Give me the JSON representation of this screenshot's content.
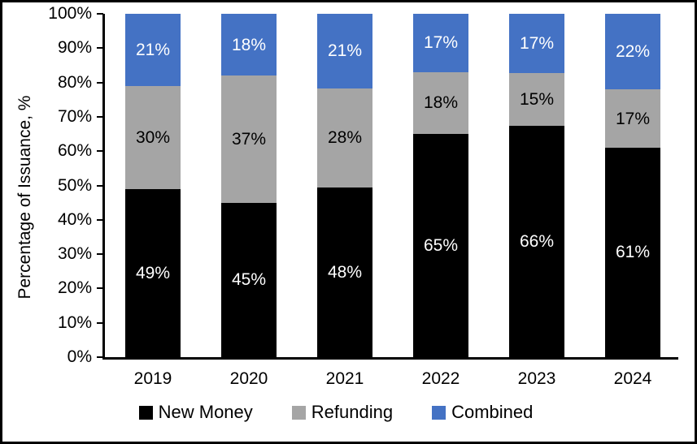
{
  "chart_data": {
    "type": "bar",
    "stacked": true,
    "title": "",
    "xlabel": "",
    "ylabel": "Percentage of Issuance, %",
    "ylim": [
      0,
      100
    ],
    "y_tick_step": 10,
    "y_tick_labels": [
      "0%",
      "10%",
      "20%",
      "30%",
      "40%",
      "50%",
      "60%",
      "70%",
      "80%",
      "90%",
      "100%"
    ],
    "categories": [
      "2019",
      "2020",
      "2021",
      "2022",
      "2023",
      "2024"
    ],
    "series": [
      {
        "name": "New Money",
        "color": "#000000",
        "label_color": "#ffffff",
        "values": [
          49,
          45,
          48,
          65,
          66,
          61
        ]
      },
      {
        "name": "Refunding",
        "color": "#A5A5A5",
        "label_color": "#000000",
        "values": [
          30,
          37,
          28,
          18,
          15,
          17
        ]
      },
      {
        "name": "Combined",
        "color": "#4472C4",
        "label_color": "#ffffff",
        "values": [
          21,
          18,
          21,
          17,
          17,
          22
        ]
      }
    ],
    "data_label_suffix": "%",
    "legend_position": "bottom",
    "grid": false,
    "background": "#ffffff",
    "axis_color": "#000000"
  }
}
